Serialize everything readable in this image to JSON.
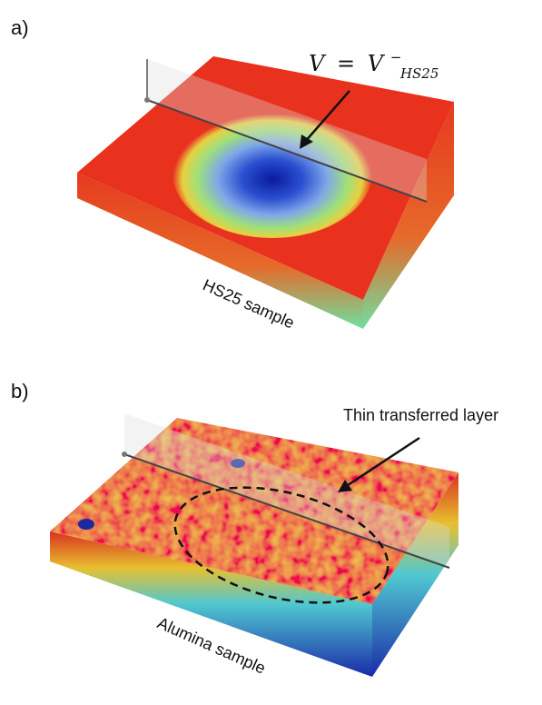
{
  "panels": [
    {
      "label": "a)",
      "annotation": {
        "lhs": "V",
        "operator": "=",
        "rhs": "V",
        "superscript": "−",
        "subscript": "HS25"
      },
      "sample_label": "HS25 sample"
    },
    {
      "label": "b)",
      "annotation_text": "Thin transferred layer",
      "sample_label": "Alumina sample"
    }
  ]
}
